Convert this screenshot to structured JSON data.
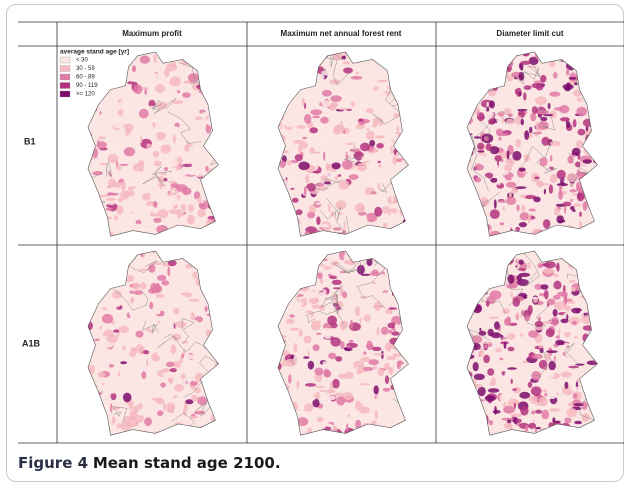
{
  "figure": {
    "column_headers": [
      "Maximum profit",
      "Maximum net annual forest rent",
      "Diameter limit cut"
    ],
    "row_labels": [
      "B1",
      "A1B"
    ],
    "legend": {
      "title": "average stand age [yr]",
      "items": [
        {
          "label": "< 30",
          "color": "#fbe6e4"
        },
        {
          "label": "30 - 59",
          "color": "#f5b8c0"
        },
        {
          "label": "60 - 89",
          "color": "#e07aa6"
        },
        {
          "label": "90 - 119",
          "color": "#b3337f"
        },
        {
          "label": ">= 120",
          "color": "#7b0c6c"
        }
      ]
    }
  },
  "caption": {
    "label": "Figure 4",
    "text": "Mean stand age 2100."
  }
}
